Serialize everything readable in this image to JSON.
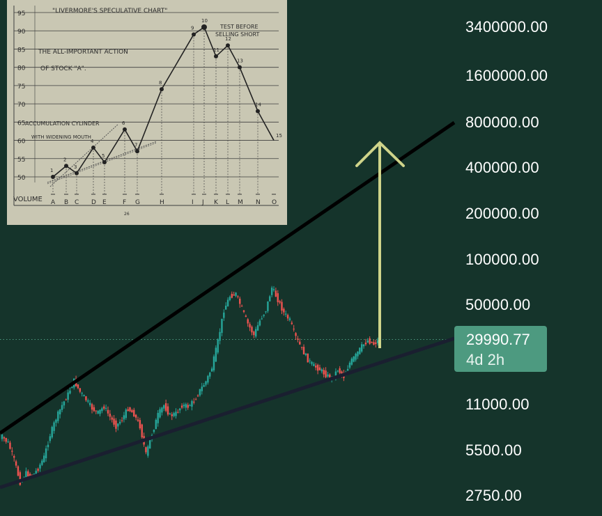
{
  "chart_data": {
    "type": "line",
    "y_scale": "log",
    "y_ticks": [
      "3400000.00",
      "1600000.00",
      "800000.00",
      "400000.00",
      "200000.00",
      "100000.00",
      "50000.00",
      "11000.00",
      "5500.00",
      "2750.00"
    ],
    "current_price": "29990.77",
    "countdown": "4d 2h",
    "colors": {
      "background": "#15342b",
      "bull": "#26a69a",
      "bear": "#ef5350",
      "upper_trendline": "#000000",
      "lower_trendline": "#1a1f30",
      "target_arrow": "#cfd48a",
      "badge": "#4d9a80"
    },
    "series": [
      {
        "values": [
          6800,
          6200,
          4800,
          3400,
          3900,
          3700,
          4200,
          5000,
          7000,
          9000,
          11000,
          13000,
          16000,
          13500,
          12000,
          10500,
          9800,
          10800,
          9200,
          8000,
          8900,
          10500,
          9600,
          8000,
          5200,
          7100,
          9500,
          11000,
          9400,
          9700,
          11000,
          10800,
          11700,
          13800,
          15800,
          19500,
          29000,
          47000,
          58000,
          60000,
          48000,
          38000,
          32000,
          40000,
          47000,
          66000,
          55000,
          45000,
          40000,
          31000,
          26000,
          22000,
          20000,
          19000,
          17500,
          16500,
          19000,
          17000,
          21000,
          23500,
          27000,
          29500,
          28000,
          30000
        ]
      }
    ]
  },
  "inset": {
    "caption": "\"LIVERMORE'S SPECULATIVE CHART\"",
    "subtitle_line1": "THE ALL-IMPORTANT ACTION",
    "subtitle_line2": "OF STOCK \"A\".",
    "note_line1": "TEST BEFORE",
    "note_line2": "SELLING SHORT",
    "accum_line1": "ACCUMULATION CYLINDER",
    "accum_line2": "WITH WIDENING MOUTH",
    "y_ticks": [
      "95",
      "90",
      "85",
      "80",
      "75",
      "70",
      "65",
      "60",
      "55",
      "50"
    ],
    "volume_label": "VOLUME",
    "x_letters": [
      "A",
      "B",
      "C",
      "D",
      "E",
      "F",
      "G",
      "H",
      "I",
      "J",
      "K",
      "L",
      "M",
      "N",
      "O"
    ],
    "point_labels": [
      "1",
      "2",
      "3",
      "4",
      "5",
      "6",
      "7",
      "8",
      "9",
      "10",
      "11",
      "12",
      "13",
      "14",
      "15"
    ],
    "point_values": [
      50,
      53,
      51,
      58,
      54,
      63,
      57,
      74,
      89,
      91,
      83,
      86,
      80,
      68,
      60
    ],
    "page_number": "26"
  }
}
